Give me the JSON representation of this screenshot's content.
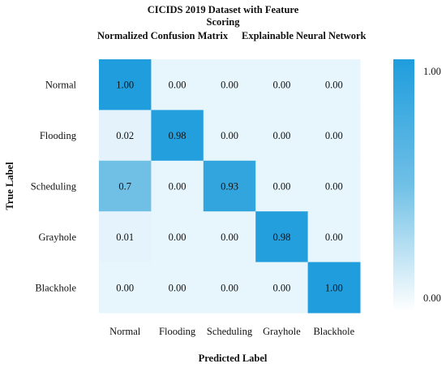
{
  "chart_data": {
    "type": "heatmap",
    "title_lines": [
      "CICIDS 2019 Dataset with Feature",
      "Scoring"
    ],
    "subtitle_left": "Normalized Confusion Matrix",
    "subtitle_right": "Explainable Neural Network",
    "xlabel": "Predicted Label",
    "ylabel": "True Label",
    "x_categories": [
      "Normal",
      "Flooding",
      "Scheduling",
      "Grayhole",
      "Blackhole"
    ],
    "y_categories": [
      "Normal",
      "Flooding",
      "Scheduling",
      "Grayhole",
      "Blackhole"
    ],
    "values": [
      [
        1.0,
        0.0,
        0.0,
        0.0,
        0.0
      ],
      [
        0.02,
        0.98,
        0.0,
        0.0,
        0.0
      ],
      [
        0.7,
        0.0,
        0.93,
        0.0,
        0.0
      ],
      [
        0.01,
        0.0,
        0.0,
        0.98,
        0.0
      ],
      [
        0.0,
        0.0,
        0.0,
        0.0,
        1.0
      ]
    ],
    "labels": [
      [
        "1.00",
        "0.00",
        "0.00",
        "0.00",
        "0.00"
      ],
      [
        "0.02",
        "0.98",
        "0.00",
        "0.00",
        "0.00"
      ],
      [
        "0.7",
        "0.00",
        "0.93",
        "0.00",
        "0.00"
      ],
      [
        "0.01",
        "0.00",
        "0.00",
        "0.98",
        "0.00"
      ],
      [
        "0.00",
        "0.00",
        "0.00",
        "0.00",
        "1.00"
      ]
    ],
    "colorbar": {
      "min": 0.0,
      "max": 1.0,
      "min_label": "0.00",
      "max_label": "1.00"
    },
    "colors": {
      "low": "#e7f5fc",
      "mid": "#70c0e6",
      "high": "#1f9ddd",
      "bar_bottom": "#ffffff"
    }
  }
}
